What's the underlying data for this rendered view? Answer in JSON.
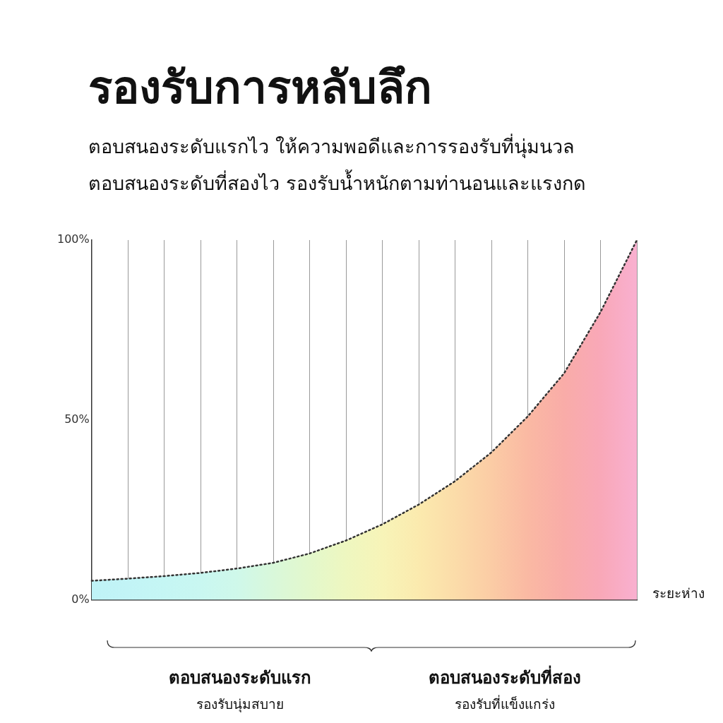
{
  "chart_data": {
    "type": "area",
    "title": "รองรับการหลับลึก",
    "subtitle": "ตอบสนองระดับแรกไว  ให้ความพอดีและการรองรับที่นุ่มนวล\nตอบสนองระดับที่สองไว รองรับน้ำหนักตามท่านอนและแรงกด",
    "xlabel": "ระยะห่าง",
    "categories": [
      null,
      null,
      null,
      null,
      null,
      null,
      null,
      null,
      null,
      null,
      null,
      null,
      null,
      null,
      null,
      null
    ],
    "series": [
      {
        "color": "#333333",
        "colors": [
          "#bff3f7",
          "#c2f4f6",
          "#c5f6f4",
          "#c9f7f1",
          "#cff8ea",
          "#d9f8da",
          "#e3f8cc",
          "#eef7c0",
          "#f7f4b8",
          "#fbeaae",
          "#fbdca9",
          "#fbcca5",
          "#fab9a3",
          "#f9aca8",
          "#f9a8b8",
          "#f9b0d0"
        ],
        "values": [
          5.3,
          5.9,
          6.6,
          7.5,
          8.7,
          10.3,
          12.9,
          16.5,
          21,
          26.5,
          33,
          41,
          51,
          63,
          80,
          100
        ]
      }
    ],
    "ylim": [
      0,
      100
    ],
    "yticks": [
      {
        "value": 0,
        "label": "0%"
      },
      {
        "value": 50,
        "label": "50%"
      },
      {
        "value": 100,
        "label": "100%"
      }
    ],
    "grid": "x",
    "legend": false,
    "marker": "none",
    "line_style": "dotted",
    "annotations": [
      "ตอบสนองระดับแรก",
      "รองรับนุ่มสบาย",
      "ตอบสนองระดับที่สอง",
      "รองรับที่แข็งแกร่ง"
    ]
  }
}
